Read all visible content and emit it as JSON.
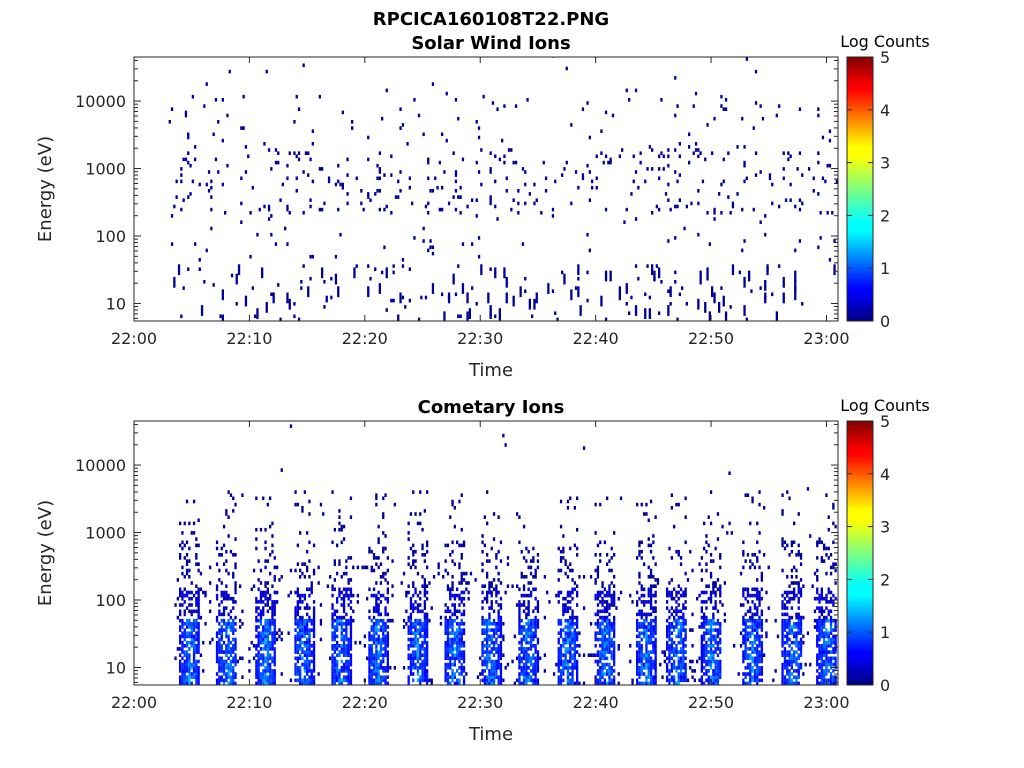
{
  "figure_title": "RPCICA160108T22.PNG",
  "colorbar": {
    "label": "Log Counts",
    "min": 0,
    "max": 5,
    "ticks": [
      "0",
      "1",
      "2",
      "3",
      "4",
      "5"
    ]
  },
  "chart_data": [
    {
      "type": "heatmap",
      "title": "Solar Wind Ions",
      "xlabel": "Time",
      "ylabel": "Energy (eV)",
      "x_ticks": [
        "22:00",
        "22:10",
        "22:20",
        "22:30",
        "22:40",
        "22:50",
        "23:00"
      ],
      "xlim_minutes": [
        0,
        61
      ],
      "y_ticks": [
        "10",
        "100",
        "1000",
        "10000"
      ],
      "y_tick_values": [
        10,
        100,
        1000,
        10000
      ],
      "ylim": [
        5.5,
        45000
      ],
      "y_scale": "log",
      "colormap": "jet",
      "value_range": [
        0,
        5
      ],
      "data_extent_minutes": [
        3,
        61
      ],
      "pattern": "sparse single counts, log counts mostly 0 (dark blue), scattered across 10 eV to 30000 eV, denser between 10 eV and 3000 eV"
    },
    {
      "type": "heatmap",
      "title": "Cometary Ions",
      "xlabel": "Time",
      "ylabel": "Energy (eV)",
      "x_ticks": [
        "22:00",
        "22:10",
        "22:20",
        "22:30",
        "22:40",
        "22:50",
        "23:00"
      ],
      "xlim_minutes": [
        0,
        61
      ],
      "y_ticks": [
        "10",
        "100",
        "1000",
        "10000"
      ],
      "y_tick_values": [
        10,
        100,
        1000,
        10000
      ],
      "ylim": [
        5.5,
        45000
      ],
      "y_scale": "log",
      "colormap": "jet",
      "value_range": [
        0,
        5
      ],
      "data_extent_minutes": [
        3.5,
        61
      ],
      "bursts_minutes": [
        4.8,
        8.0,
        11.3,
        14.6,
        17.8,
        21.0,
        24.5,
        27.7,
        30.8,
        34.0,
        37.5,
        40.8,
        44.3,
        47.0,
        50.0,
        53.5,
        57.0,
        60.0
      ],
      "pattern": "periodic vertical bursts roughly every 3.3 minutes, peak log counts about 1.5 (light blue) between 15 eV and 40 eV, extending up to about 3000 eV at low counts"
    }
  ]
}
